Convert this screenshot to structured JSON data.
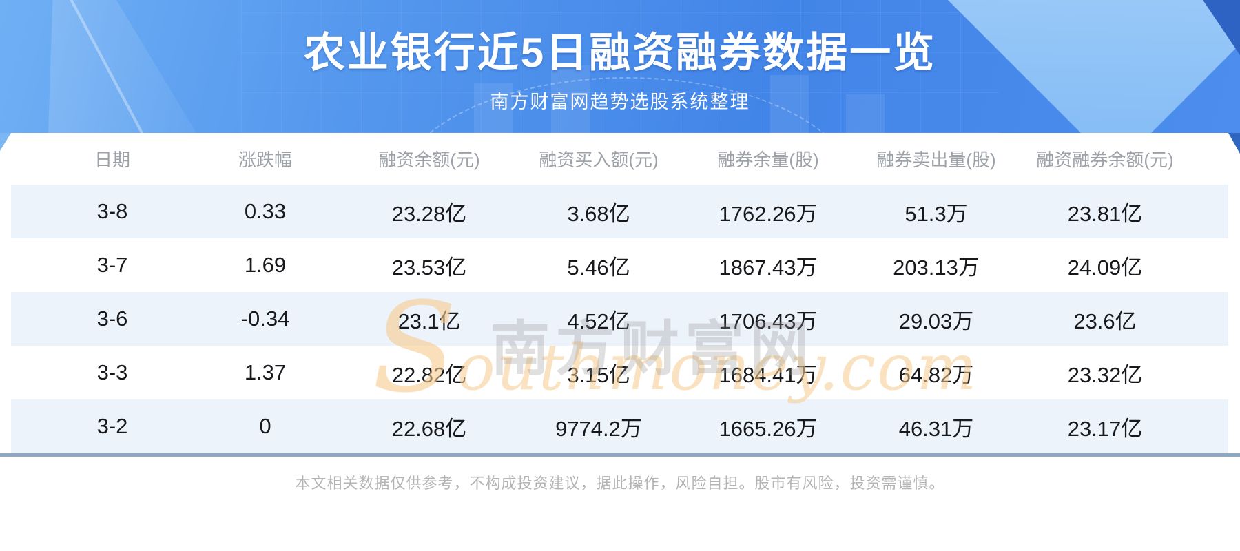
{
  "banner": {
    "title": "农业银行近5日融资融券数据一览",
    "subtitle": "南方财富网趋势选股系统整理"
  },
  "table": {
    "columns": [
      "日期",
      "涨跌幅",
      "融资余额(元)",
      "融资买入额(元)",
      "融券余量(股)",
      "融券卖出量(股)",
      "融资融券余额(元)"
    ],
    "rows": [
      [
        "3-8",
        "0.33",
        "23.28亿",
        "3.68亿",
        "1762.26万",
        "51.3万",
        "23.81亿"
      ],
      [
        "3-7",
        "1.69",
        "23.53亿",
        "5.46亿",
        "1867.43万",
        "203.13万",
        "24.09亿"
      ],
      [
        "3-6",
        "-0.34",
        "23.1亿",
        "4.52亿",
        "1706.43万",
        "29.03万",
        "23.6亿"
      ],
      [
        "3-3",
        "1.37",
        "22.82亿",
        "3.15亿",
        "1684.41万",
        "64.82万",
        "23.32亿"
      ],
      [
        "3-2",
        "0",
        "22.68亿",
        "9774.2万",
        "1665.26万",
        "46.31万",
        "23.17亿"
      ]
    ]
  },
  "watermark": {
    "cn": "南方财富网",
    "en_initial": "S",
    "en_rest": "outhmoney.com"
  },
  "disclaimer": "本文相关数据仅供参考，不构成投资建议，据此操作，风险自担。股市有风险，投资需谨慎。",
  "colors": {
    "banner_blue": "#4285e8",
    "row_stripe": "#edf3fb",
    "divider": "#8fa9c2",
    "watermark_orange": "#f2c28a",
    "header_text": "#9da1a8",
    "cell_text": "#17191c"
  },
  "chart_data": {
    "type": "table",
    "title": "农业银行近5日融资融券数据一览",
    "subtitle": "南方财富网趋势选股系统整理",
    "columns": [
      "日期",
      "涨跌幅",
      "融资余额(元)",
      "融资买入额(元)",
      "融券余量(股)",
      "融券卖出量(股)",
      "融资融券余额(元)"
    ],
    "rows": [
      [
        "3-8",
        "0.33",
        "23.28亿",
        "3.68亿",
        "1762.26万",
        "51.3万",
        "23.81亿"
      ],
      [
        "3-7",
        "1.69",
        "23.53亿",
        "5.46亿",
        "1867.43万",
        "203.13万",
        "24.09亿"
      ],
      [
        "3-6",
        "-0.34",
        "23.1亿",
        "4.52亿",
        "1706.43万",
        "29.03万",
        "23.6亿"
      ],
      [
        "3-3",
        "1.37",
        "22.82亿",
        "3.15亿",
        "1684.41万",
        "64.82万",
        "23.32亿"
      ],
      [
        "3-2",
        "0",
        "22.68亿",
        "9774.2万",
        "1665.26万",
        "46.31万",
        "23.17亿"
      ]
    ]
  }
}
